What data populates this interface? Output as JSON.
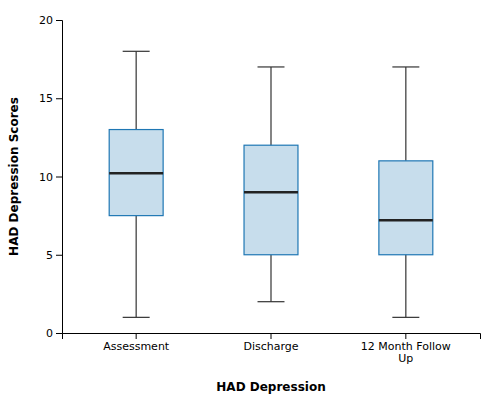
{
  "chart_data": {
    "type": "box",
    "categories": [
      "Assessment",
      "Discharge",
      "12 Month Follow\nUp"
    ],
    "boxes": [
      {
        "whislo": 1.0,
        "q1": 7.5,
        "med": 10.2,
        "q3": 13.0,
        "whishi": 18.0
      },
      {
        "whislo": 2.0,
        "q1": 5.0,
        "med": 9.0,
        "q3": 12.0,
        "whishi": 17.0
      },
      {
        "whislo": 1.0,
        "q1": 5.0,
        "med": 7.2,
        "q3": 11.0,
        "whishi": 17.0
      }
    ],
    "xlabel": "HAD Depression",
    "ylabel": "HAD Depression Scores",
    "ylim": [
      0,
      20
    ],
    "yticks": [
      0,
      5,
      10,
      15,
      20
    ],
    "grid": false
  }
}
